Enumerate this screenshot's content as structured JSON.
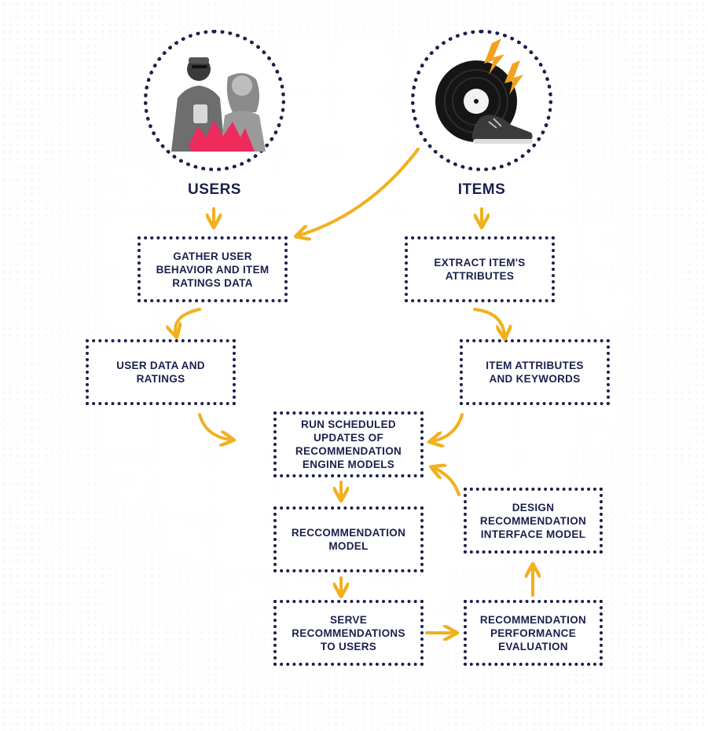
{
  "diagram": {
    "accent_color": "#f2b01e",
    "ink_color": "#1b1f4b",
    "users": {
      "label": "USERS",
      "icon": "users-photo-icon"
    },
    "items": {
      "label": "ITEMS",
      "icon": "vinyl-record-and-sneaker-icon"
    },
    "nodes": {
      "gather": "GATHER USER\nBEHAVIOR AND ITEM\nRATINGS DATA",
      "extract": "EXTRACT ITEM'S\nATTRIBUTES",
      "user_data": "USER DATA AND\nRATINGS",
      "item_attributes": "ITEM ATTRIBUTES\nAND KEYWORDS",
      "run_updates": "RUN SCHEDULED\nUPDATES OF\nRECOMMENDATION\nENGINE MODELS",
      "design": "DESIGN\nRECOMMENDATION\nINTERFACE MODEL",
      "model": "RECCOMMENDATION\nMODEL",
      "serve": "SERVE\nRECOMMENDATIONS\nTO USERS",
      "evaluation": "RECOMMENDATION\nPERFORMANCE\nEVALUATION"
    }
  }
}
